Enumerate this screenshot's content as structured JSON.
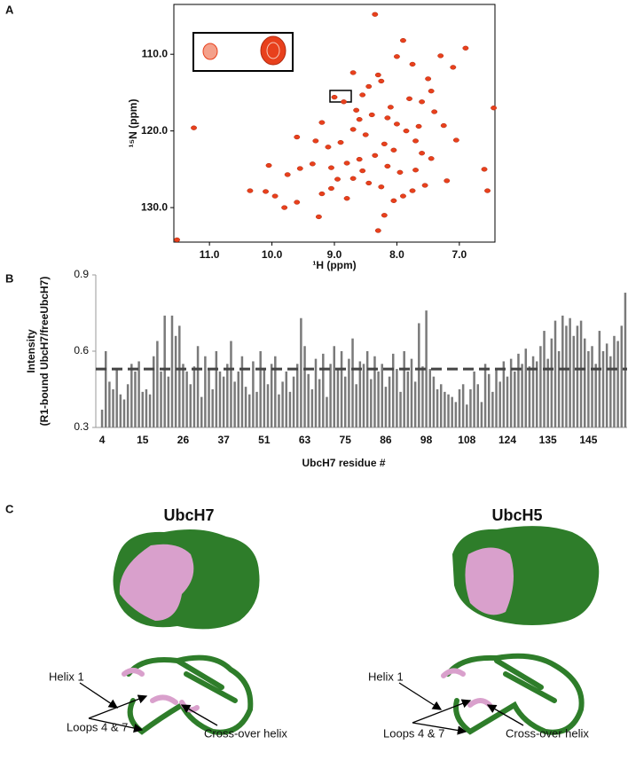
{
  "panels": {
    "a": "A",
    "b": "B",
    "c": "C"
  },
  "chart_data": [
    {
      "type": "scatter",
      "xlabel": "¹H (ppm)",
      "ylabel": "¹⁵N (ppm)",
      "color": "#e8401c",
      "x": [
        8.35,
        11.52,
        11.25,
        10.35,
        10.1,
        9.95,
        9.8,
        9.6,
        9.25,
        9.2,
        9.05,
        8.95,
        8.8,
        8.7,
        8.55,
        8.3,
        8.2,
        8.05,
        7.9,
        7.75,
        7.55,
        7.2,
        6.55,
        6.6,
        6.45,
        7.05,
        7.25,
        7.4,
        7.6,
        7.8,
        7.45,
        7.1,
        7.3,
        7.5,
        7.9,
        8.0,
        8.3,
        8.25,
        8.45,
        8.55,
        8.85,
        9.0,
        8.65,
        8.4,
        8.15,
        8.0,
        7.85,
        7.7,
        8.5,
        8.7,
        8.9,
        9.1,
        9.3,
        8.2,
        8.05,
        7.6,
        7.45,
        8.35,
        8.6,
        8.8,
        9.05,
        9.35,
        9.55,
        9.75,
        10.05,
        8.15,
        7.95,
        7.7,
        8.45,
        8.25,
        7.65,
        8.1,
        8.6,
        9.2,
        9.6,
        6.9,
        7.75,
        8.7
      ],
      "values": [
        104.8,
        134.2,
        119.6,
        127.8,
        127.9,
        128.5,
        130,
        129.3,
        131.2,
        128.2,
        127.5,
        126.3,
        128.8,
        126.2,
        125.2,
        133,
        131,
        129.1,
        128.5,
        127.8,
        127.1,
        126.5,
        127.8,
        125,
        117,
        121.2,
        119.3,
        117.5,
        116.2,
        115.8,
        114.8,
        111.7,
        110.2,
        113.2,
        108.2,
        110.3,
        112.7,
        113.5,
        114.2,
        115.3,
        116.2,
        115.6,
        117.3,
        117.9,
        118.3,
        119.1,
        120,
        121.3,
        120.5,
        119.8,
        121.5,
        122.1,
        121.3,
        121.7,
        122.5,
        122.9,
        123.6,
        123.2,
        123.7,
        124.2,
        124.8,
        124.3,
        124.9,
        125.7,
        124.5,
        124.6,
        125.4,
        125.1,
        126.8,
        127.3,
        119.4,
        116.9,
        118.5,
        118.9,
        120.8,
        109.2,
        111.3,
        112.4
      ],
      "xlim": [
        11.57,
        6.43
      ],
      "xticks": [
        {
          "value": 11,
          "label": "11.0"
        },
        {
          "value": 10,
          "label": "10.0"
        },
        {
          "value": 9,
          "label": "9.0"
        },
        {
          "value": 8,
          "label": "8.0"
        },
        {
          "value": 7,
          "label": "7.0"
        }
      ],
      "ylim": [
        103.5,
        134.5
      ],
      "yticks": [
        {
          "value": 110,
          "label": "110.0"
        },
        {
          "value": 120,
          "label": "120.0"
        },
        {
          "value": 130,
          "label": "130.0"
        }
      ]
    },
    {
      "type": "bar",
      "xlabel": "UbcH7 residue #",
      "ylabel": [
        "Intensity",
        "(R1-bound UbcH7/freeUbcH7)"
      ],
      "color": "#7a7a7a",
      "reference_line": 0.53,
      "categories": [
        "4",
        null,
        null,
        null,
        null,
        null,
        null,
        null,
        null,
        null,
        null,
        "15",
        null,
        null,
        null,
        null,
        null,
        null,
        null,
        null,
        null,
        null,
        "26",
        null,
        null,
        null,
        null,
        null,
        null,
        null,
        null,
        null,
        null,
        "37",
        null,
        null,
        null,
        null,
        null,
        null,
        null,
        null,
        null,
        null,
        "51",
        null,
        null,
        null,
        null,
        null,
        null,
        null,
        null,
        null,
        null,
        "63",
        null,
        null,
        null,
        null,
        null,
        null,
        null,
        null,
        null,
        null,
        "75",
        null,
        null,
        null,
        null,
        null,
        null,
        null,
        null,
        null,
        null,
        "86",
        null,
        null,
        null,
        null,
        null,
        null,
        null,
        null,
        null,
        null,
        "98",
        null,
        null,
        null,
        null,
        null,
        null,
        null,
        null,
        null,
        null,
        "108",
        null,
        null,
        null,
        null,
        null,
        null,
        null,
        null,
        null,
        null,
        "124",
        null,
        null,
        null,
        null,
        null,
        null,
        null,
        null,
        null,
        null,
        "135",
        null,
        null,
        null,
        null,
        null,
        null,
        null,
        null,
        null,
        null,
        "145",
        null,
        null,
        null,
        null,
        null,
        null,
        null,
        null,
        null,
        null
      ],
      "values": [
        0.37,
        0.6,
        0.48,
        0.45,
        0.53,
        0.43,
        0.41,
        0.47,
        0.55,
        0.52,
        0.56,
        0.44,
        0.45,
        0.43,
        0.58,
        0.64,
        0.52,
        0.74,
        0.5,
        0.74,
        0.66,
        0.7,
        0.55,
        0.52,
        0.47,
        0.54,
        0.62,
        0.42,
        0.58,
        0.53,
        0.45,
        0.6,
        0.52,
        0.5,
        0.55,
        0.64,
        0.48,
        0.52,
        0.58,
        0.46,
        0.43,
        0.56,
        0.44,
        0.6,
        0.53,
        0.47,
        0.55,
        0.58,
        0.43,
        0.48,
        0.52,
        0.44,
        0.5,
        0.55,
        0.73,
        0.62,
        0.51,
        0.45,
        0.57,
        0.49,
        0.59,
        0.42,
        0.55,
        0.62,
        0.53,
        0.6,
        0.5,
        0.57,
        0.65,
        0.47,
        0.56,
        0.55,
        0.6,
        0.49,
        0.58,
        0.52,
        0.55,
        0.46,
        0.5,
        0.59,
        0.53,
        0.44,
        0.6,
        0.52,
        0.57,
        0.48,
        0.71,
        0.54,
        0.76,
        0.53,
        0.5,
        0.45,
        0.47,
        0.44,
        0.43,
        0.42,
        0.4,
        0.45,
        0.47,
        0.39,
        0.45,
        0.52,
        0.47,
        0.4,
        0.55,
        0.51,
        0.44,
        0.53,
        0.48,
        0.56,
        0.5,
        0.57,
        0.52,
        0.59,
        0.55,
        0.61,
        0.54,
        0.58,
        0.56,
        0.62,
        0.68,
        0.57,
        0.65,
        0.72,
        0.6,
        0.74,
        0.7,
        0.73,
        0.66,
        0.7,
        0.72,
        0.65,
        0.6,
        0.62,
        0.55,
        0.68,
        0.6,
        0.63,
        0.58,
        0.66,
        0.64,
        0.7,
        0.83
      ],
      "ylim": [
        0.3,
        0.9
      ],
      "yticks": [
        0.3,
        0.6,
        0.9
      ]
    }
  ],
  "structures": [
    {
      "title": "UbcH7",
      "annotations": [
        "Helix 1",
        "Loops 4 & 7",
        "Cross-over helix"
      ]
    },
    {
      "title": "UbcH5",
      "annotations": [
        "Helix 1",
        "Loops 4 & 7",
        "Cross-over helix"
      ]
    }
  ]
}
